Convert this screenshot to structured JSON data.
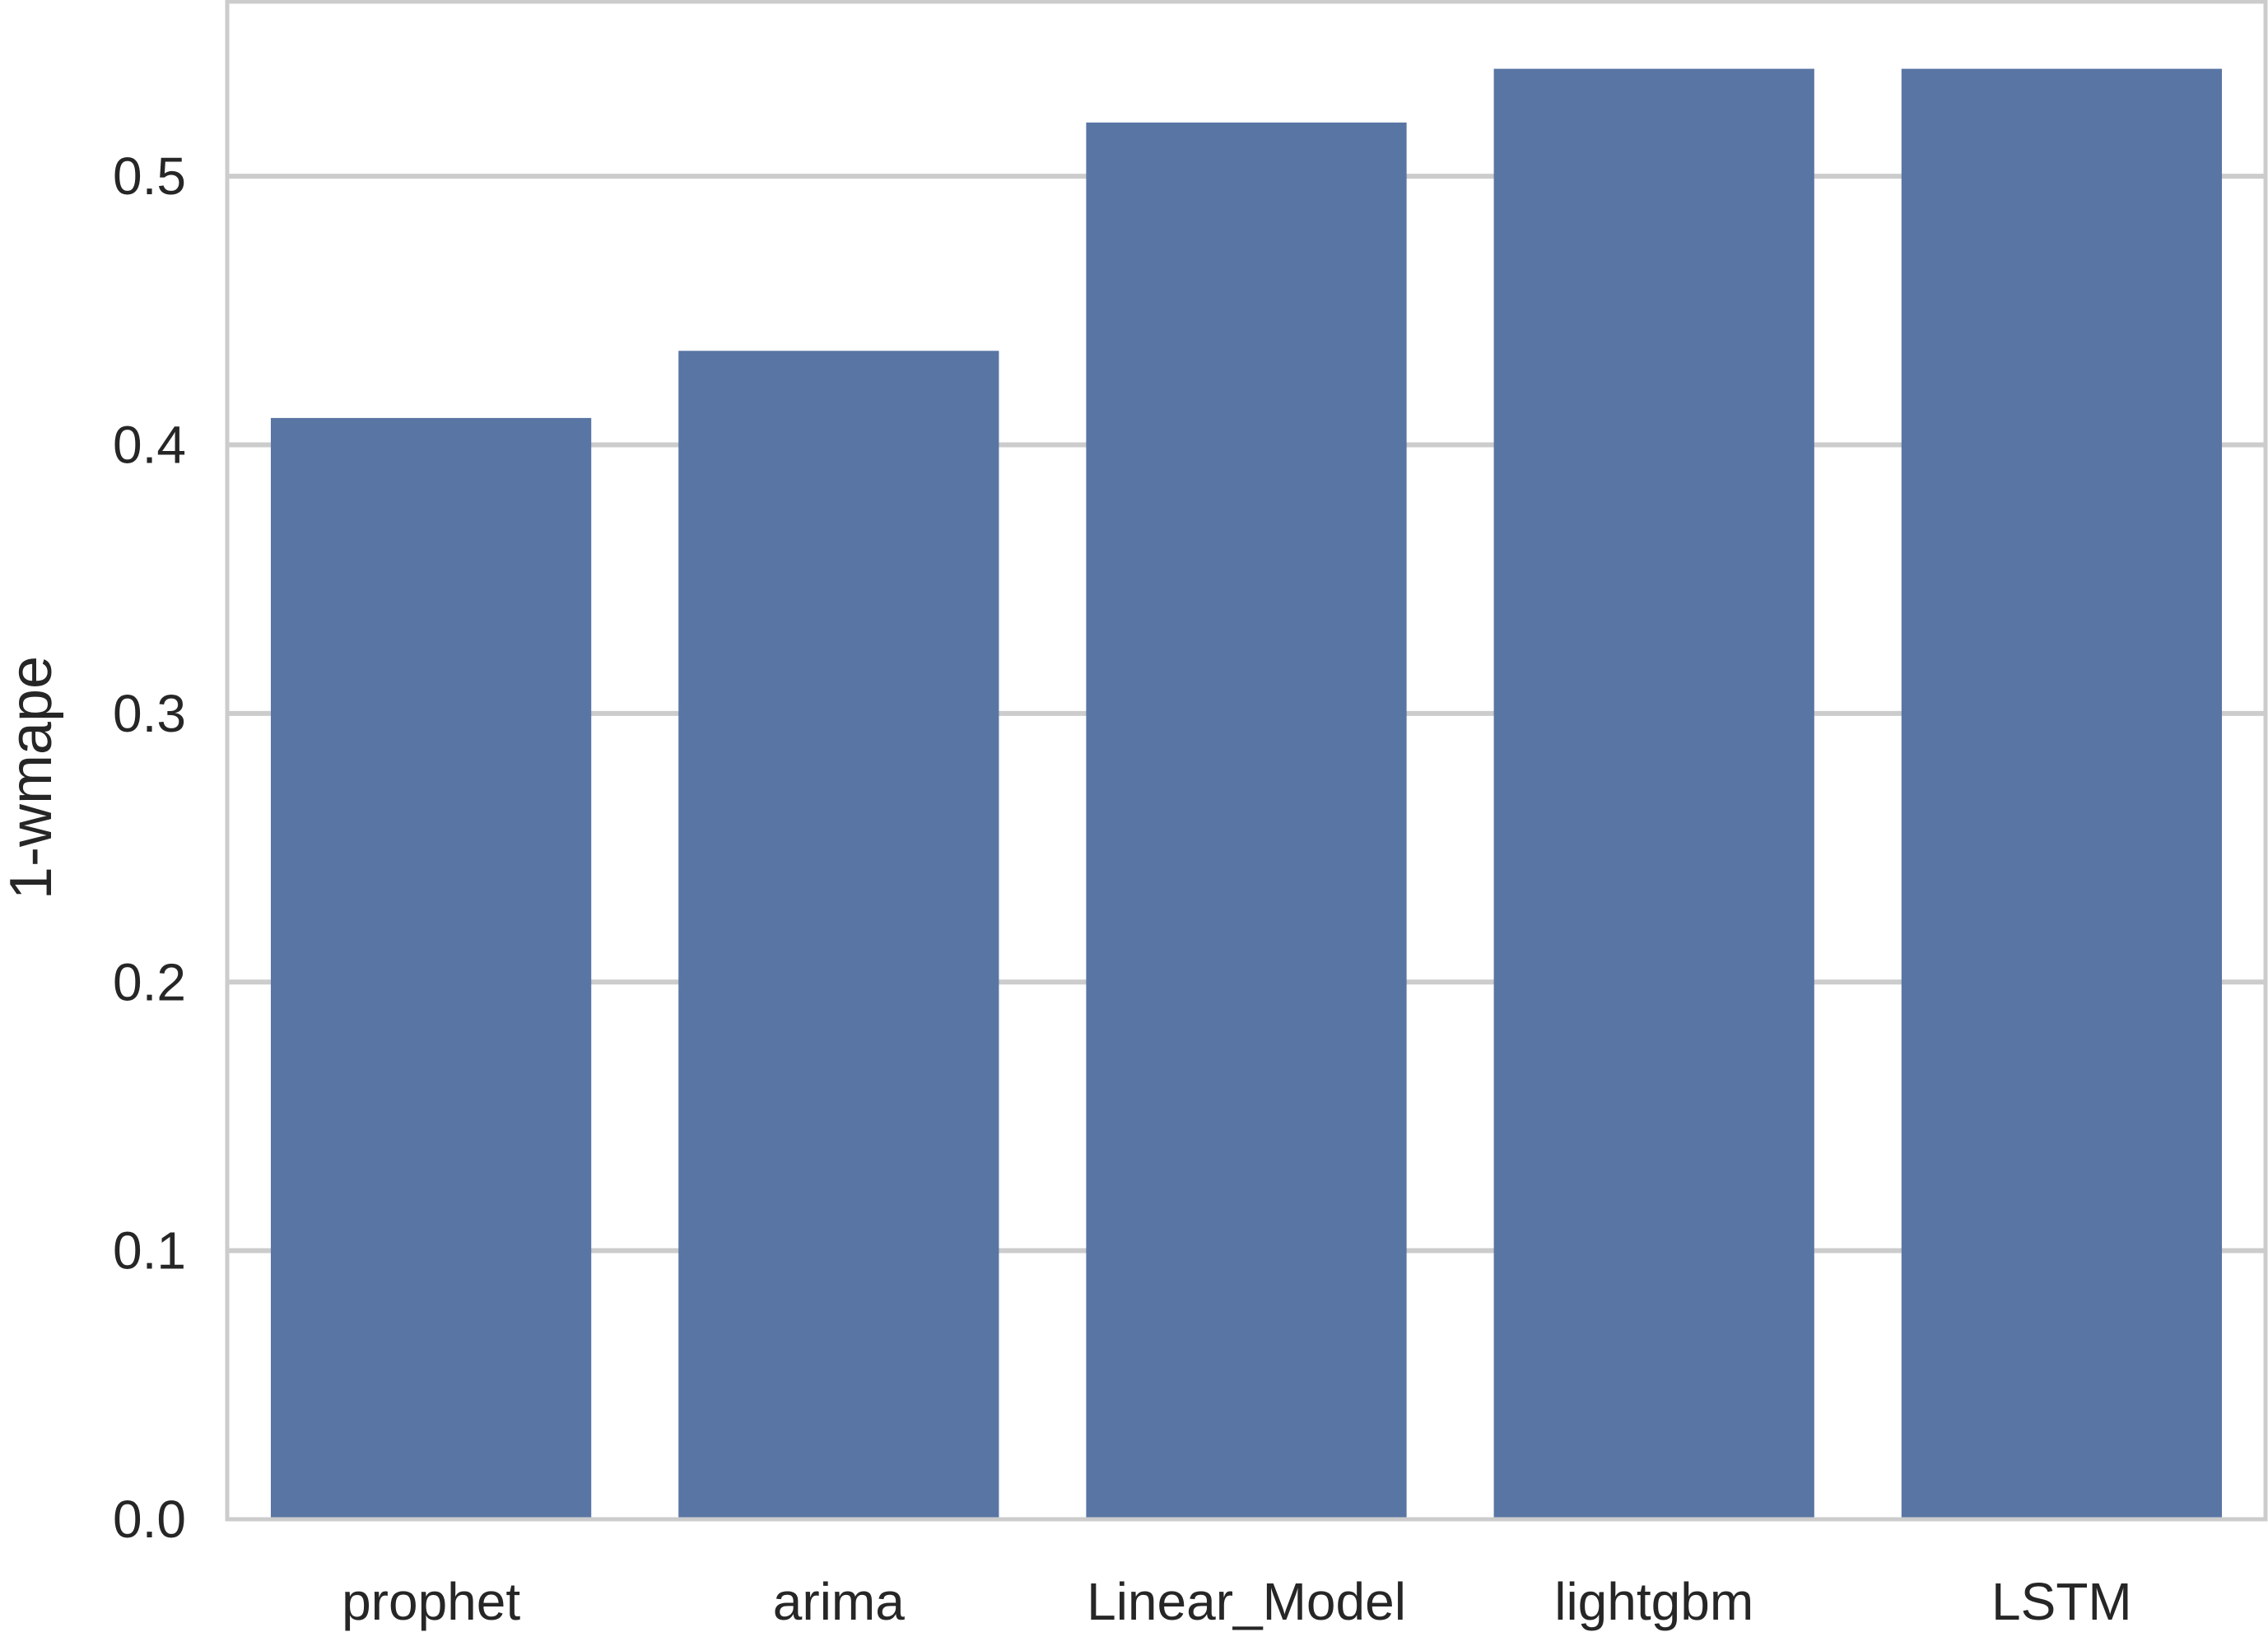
{
  "chart_data": {
    "type": "bar",
    "title": "",
    "xlabel": "",
    "ylabel": "1-wmape",
    "categories": [
      "prophet",
      "arima",
      "Linear_Model",
      "lightgbm",
      "LSTM"
    ],
    "values": [
      0.41,
      0.435,
      0.52,
      0.54,
      0.54
    ],
    "ylim": [
      0,
      0.565
    ],
    "yticks": [
      0.0,
      0.1,
      0.2,
      0.3,
      0.4,
      0.5
    ],
    "ytick_labels": [
      "0.0",
      "0.1",
      "0.2",
      "0.3",
      "0.4",
      "0.5"
    ],
    "grid": true,
    "colors": {
      "bar": "#5975a4",
      "grid": "#cccccc",
      "spine": "#cccccc",
      "text": "#262626"
    }
  }
}
